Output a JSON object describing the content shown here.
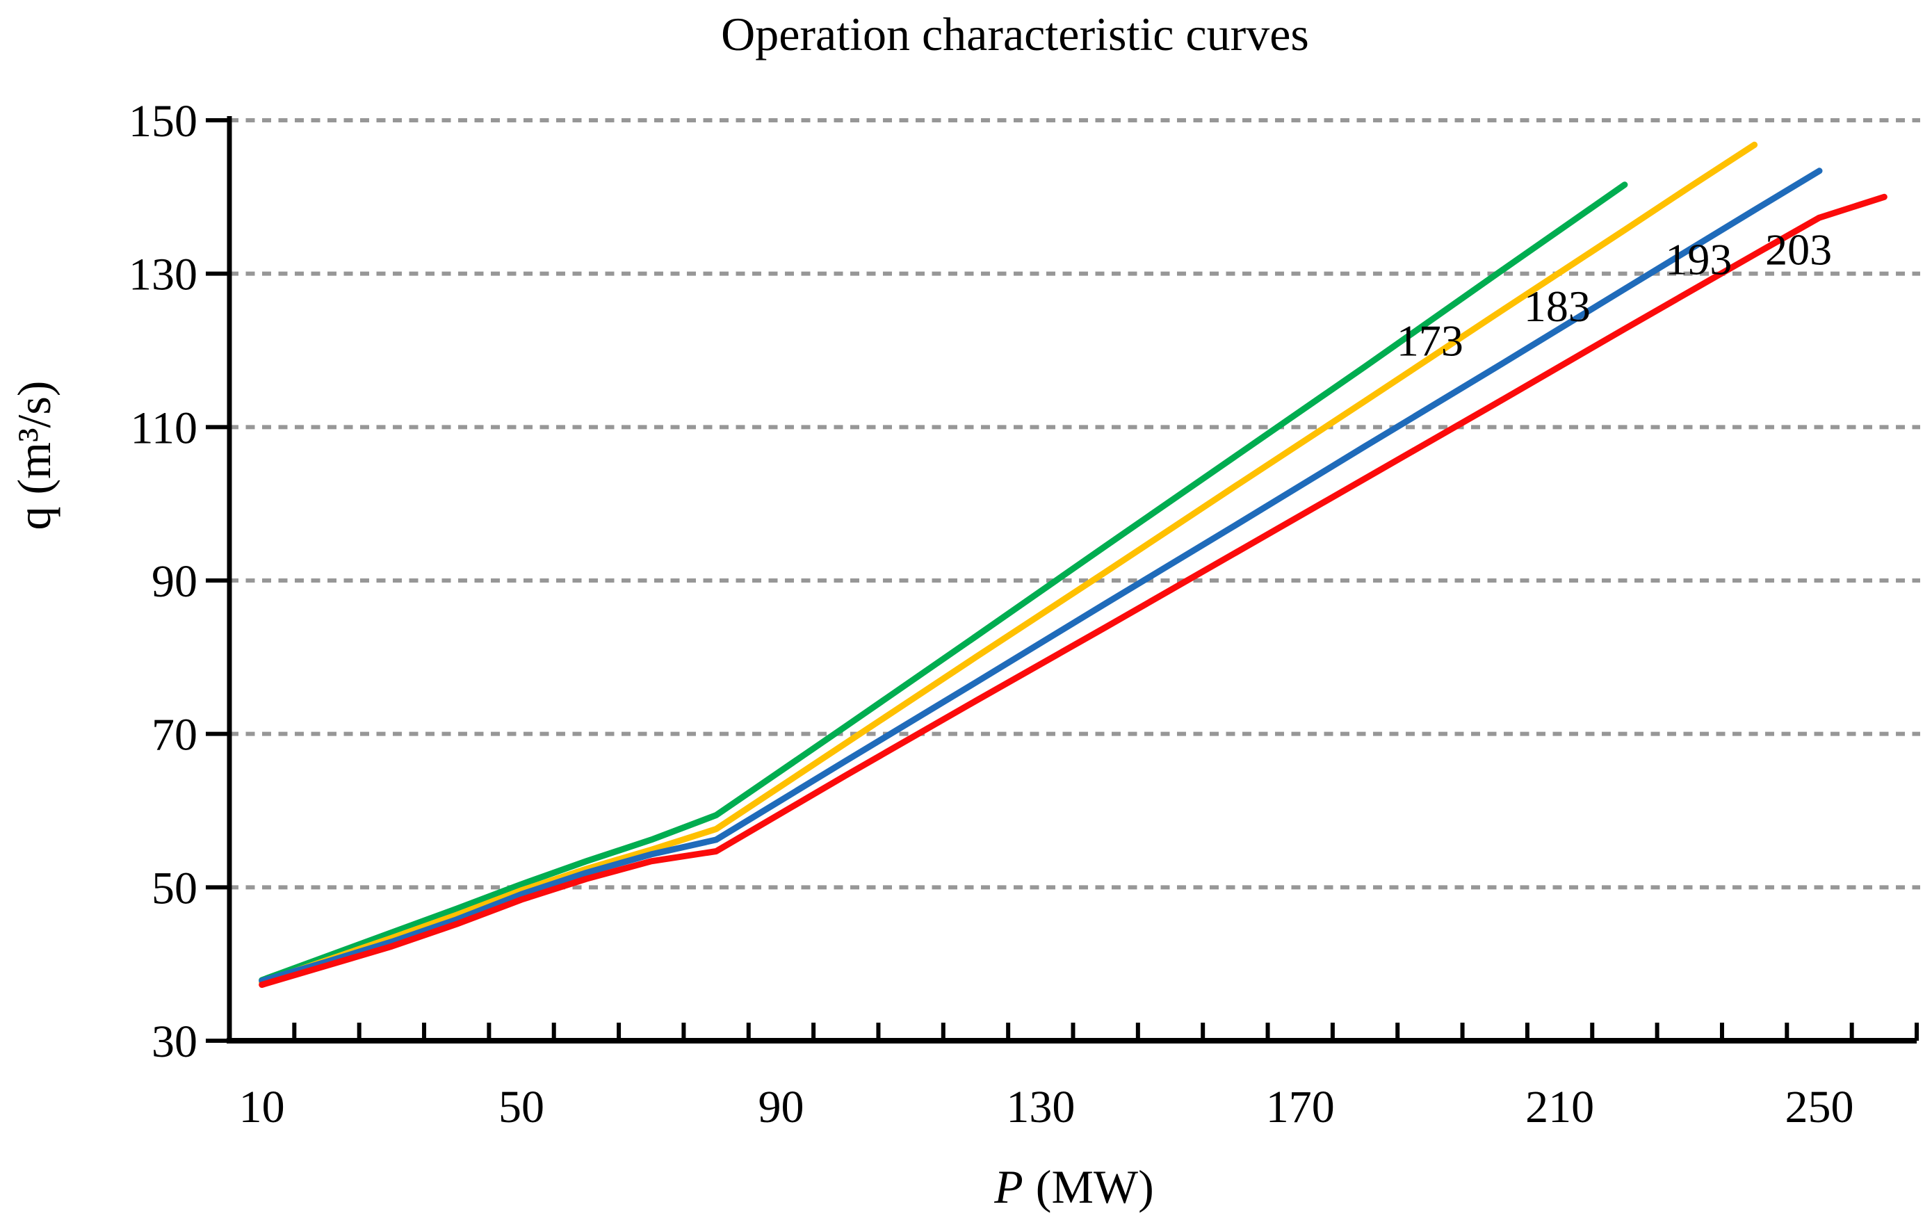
{
  "title": "Operation characteristic curves",
  "colors": {
    "background": "#ffffff",
    "axis": "#000000",
    "grid": "#979797",
    "text": "#000000"
  },
  "chart_data": {
    "type": "line",
    "title": "Operation characteristic curves",
    "xlabel": "P (MW)",
    "xlabel_var": "P",
    "xlabel_unit": "(MW)",
    "ylabel": "q (m³/s)",
    "xlim": [
      5,
      265
    ],
    "ylim": [
      30,
      150
    ],
    "x_tick_labels": [
      10,
      50,
      90,
      130,
      170,
      210,
      250
    ],
    "x_minor_tick_step": 10,
    "y_tick_labels": [
      150,
      130,
      110,
      90,
      70,
      50,
      30
    ],
    "gridline_values": [
      50,
      70,
      90,
      110,
      130,
      150
    ],
    "grid_style": "horizontal dotted",
    "legend_position": "inline curve labels",
    "series": [
      {
        "name": "173",
        "color": "#00AD50",
        "label_anchor": {
          "P": 190.0,
          "q": 121.3
        },
        "points": [
          [
            10,
            37.9
          ],
          [
            20,
            41.0
          ],
          [
            30,
            44.1
          ],
          [
            40,
            47.2
          ],
          [
            50,
            50.4
          ],
          [
            60,
            53.4
          ],
          [
            70,
            56.2
          ],
          [
            80,
            59.4
          ],
          [
            100,
            71.0
          ],
          [
            120,
            82.7
          ],
          [
            140,
            94.5
          ],
          [
            160,
            106.2
          ],
          [
            180,
            117.9
          ],
          [
            200,
            129.8
          ],
          [
            210,
            135.7
          ],
          [
            220,
            141.6
          ]
        ]
      },
      {
        "name": "183",
        "color": "#FFC000",
        "label_anchor": {
          "P": 209.6,
          "q": 125.8
        },
        "points": [
          [
            10,
            37.6
          ],
          [
            20,
            40.5
          ],
          [
            30,
            43.4
          ],
          [
            40,
            46.4
          ],
          [
            50,
            49.6
          ],
          [
            60,
            52.4
          ],
          [
            70,
            54.9
          ],
          [
            80,
            57.6
          ],
          [
            100,
            68.8
          ],
          [
            120,
            80.0
          ],
          [
            140,
            91.1
          ],
          [
            160,
            102.3
          ],
          [
            180,
            113.4
          ],
          [
            200,
            124.6
          ],
          [
            220,
            135.7
          ],
          [
            230,
            141.3
          ],
          [
            240,
            146.8
          ]
        ]
      },
      {
        "name": "193",
        "color": "#1F6BBA",
        "label_anchor": {
          "P": 231.4,
          "q": 131.9
        },
        "points": [
          [
            10,
            37.8
          ],
          [
            20,
            40.3
          ],
          [
            30,
            42.9
          ],
          [
            40,
            45.8
          ],
          [
            50,
            49.1
          ],
          [
            60,
            51.9
          ],
          [
            70,
            54.3
          ],
          [
            80,
            56.2
          ],
          [
            100,
            66.5
          ],
          [
            120,
            76.7
          ],
          [
            140,
            87.0
          ],
          [
            160,
            97.2
          ],
          [
            180,
            107.5
          ],
          [
            200,
            117.7
          ],
          [
            220,
            128.0
          ],
          [
            240,
            138.3
          ],
          [
            250,
            143.4
          ]
        ]
      },
      {
        "name": "203",
        "color": "#FB0B0B",
        "label_anchor": {
          "P": 246.8,
          "q": 133.2
        },
        "points": [
          [
            10,
            37.3
          ],
          [
            20,
            39.8
          ],
          [
            30,
            42.3
          ],
          [
            40,
            45.2
          ],
          [
            50,
            48.4
          ],
          [
            60,
            51.1
          ],
          [
            70,
            53.4
          ],
          [
            80,
            54.7
          ],
          [
            100,
            64.6
          ],
          [
            120,
            74.3
          ],
          [
            140,
            83.9
          ],
          [
            160,
            93.6
          ],
          [
            180,
            103.3
          ],
          [
            200,
            113.0
          ],
          [
            220,
            122.8
          ],
          [
            240,
            132.5
          ],
          [
            250,
            137.3
          ],
          [
            260,
            140.0
          ]
        ]
      }
    ]
  }
}
